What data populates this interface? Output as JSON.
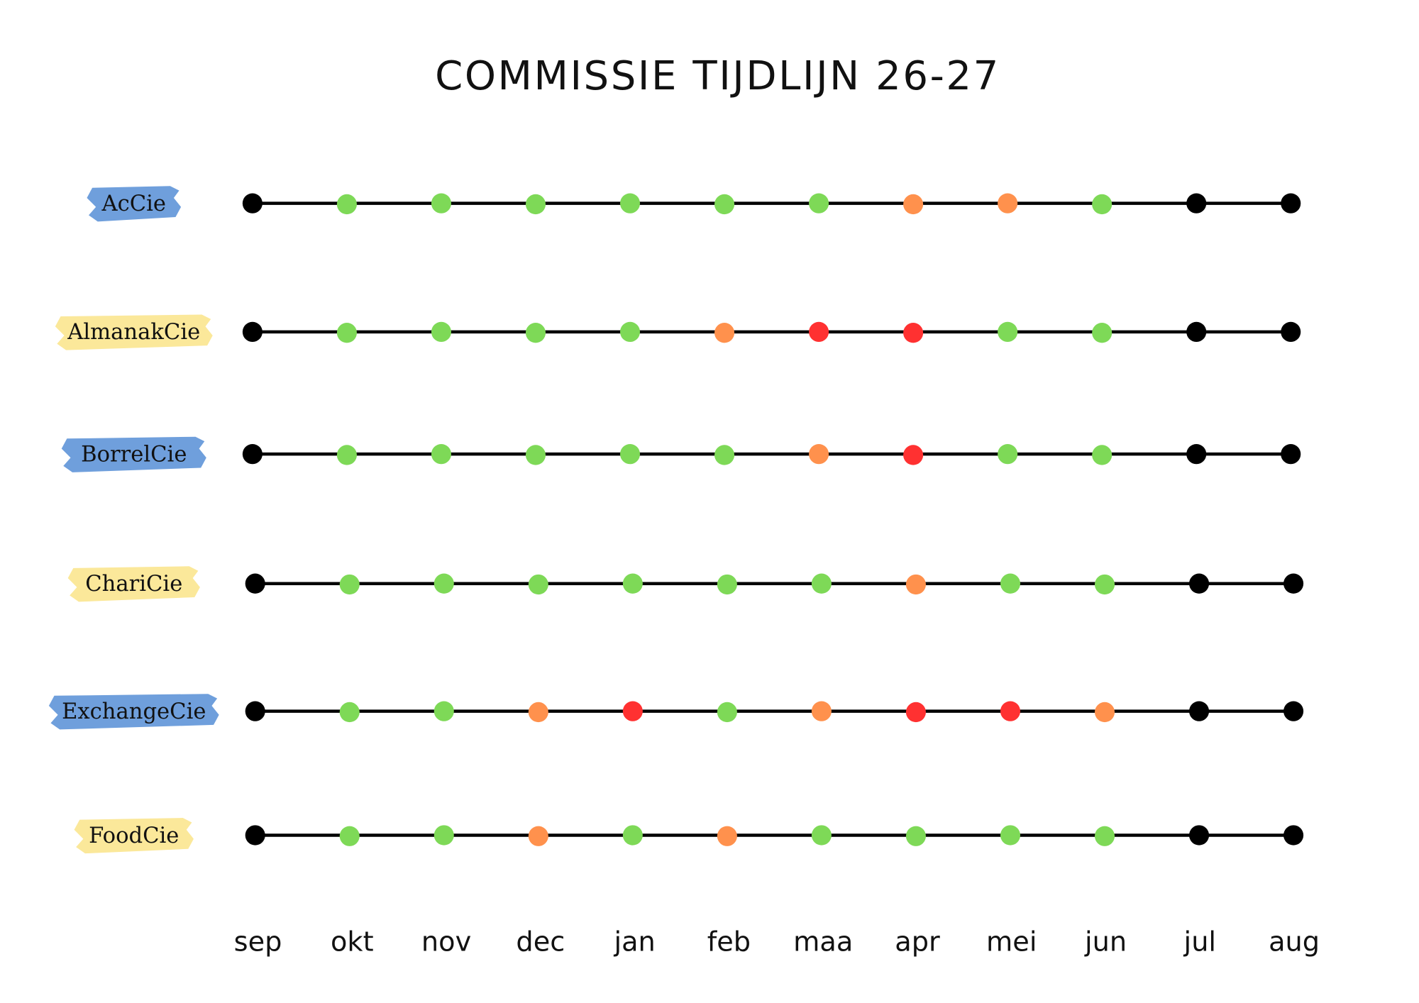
{
  "title": "COMMISSIE TIJDLIJN 26-27",
  "months": [
    "sep",
    "okt",
    "nov",
    "dec",
    "jan",
    "feb",
    "maa",
    "apr",
    "mei",
    "jun",
    "jul",
    "aug"
  ],
  "rows": [
    {
      "name": "AcCie",
      "highlight": "#6f9fdc",
      "dots": [
        "#000000",
        "#7ed957",
        "#7ed957",
        "#7ed957",
        "#7ed957",
        "#7ed957",
        "#7ed957",
        "#ff914d",
        "#ff914d",
        "#7ed957",
        "#000000",
        "#000000"
      ]
    },
    {
      "name": "AlmanakCie",
      "highlight": "#fbe89a",
      "dots": [
        "#000000",
        "#7ed957",
        "#7ed957",
        "#7ed957",
        "#7ed957",
        "#ff914d",
        "#ff3131",
        "#ff3131",
        "#7ed957",
        "#7ed957",
        "#000000",
        "#000000"
      ]
    },
    {
      "name": "BorrelCie",
      "highlight": "#6f9fdc",
      "dots": [
        "#000000",
        "#7ed957",
        "#7ed957",
        "#7ed957",
        "#7ed957",
        "#7ed957",
        "#ff914d",
        "#ff3131",
        "#7ed957",
        "#7ed957",
        "#000000",
        "#000000"
      ]
    },
    {
      "name": "ChariCie",
      "highlight": "#fbe89a",
      "dots": [
        "#000000",
        "#7ed957",
        "#7ed957",
        "#7ed957",
        "#7ed957",
        "#7ed957",
        "#7ed957",
        "#ff914d",
        "#7ed957",
        "#7ed957",
        "#000000",
        "#000000"
      ]
    },
    {
      "name": "ExchangeCie",
      "highlight": "#6f9fdc",
      "dots": [
        "#000000",
        "#7ed957",
        "#7ed957",
        "#ff914d",
        "#ff3131",
        "#7ed957",
        "#ff914d",
        "#ff3131",
        "#ff3131",
        "#ff914d",
        "#000000",
        "#000000"
      ]
    },
    {
      "name": "FoodCie",
      "highlight": "#fbe89a",
      "dots": [
        "#000000",
        "#7ed957",
        "#7ed957",
        "#ff914d",
        "#7ed957",
        "#ff914d",
        "#7ed957",
        "#7ed957",
        "#7ed957",
        "#7ed957",
        "#000000",
        "#000000"
      ]
    }
  ]
}
